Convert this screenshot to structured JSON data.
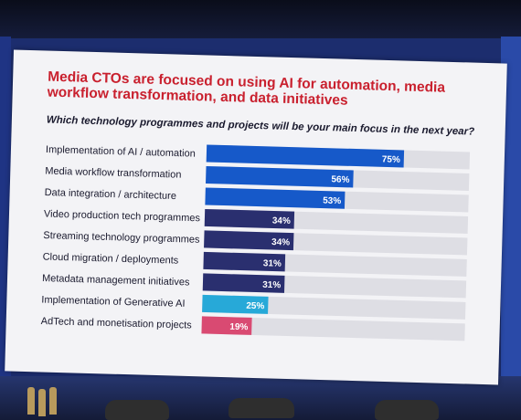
{
  "slide": {
    "title": "Media CTOs are focused on using AI for automation, media workflow transformation, and data initiatives",
    "subtitle": "Which technology programmes and projects will be your main focus in the next year?"
  },
  "chart_data": {
    "type": "bar",
    "orientation": "horizontal",
    "categories": [
      "Implementation of AI / automation",
      "Media workflow transformation",
      "Data integration / architecture",
      "Video production tech programmes",
      "Streaming technology programmes",
      "Cloud migration / deployments",
      "Metadata management initiatives",
      "Implementation of Generative AI",
      "AdTech and monetisation projects"
    ],
    "values": [
      75,
      56,
      53,
      34,
      34,
      31,
      31,
      25,
      19
    ],
    "labels": [
      "75%",
      "56%",
      "53%",
      "34%",
      "34%",
      "31%",
      "31%",
      "25%",
      "19%"
    ],
    "colors": [
      "#1659c9",
      "#1659c9",
      "#1659c9",
      "#2a2f6f",
      "#2a2f6f",
      "#2a2f6f",
      "#2a2f6f",
      "#27a9d8",
      "#d94a72"
    ],
    "track_color": "#dedee4",
    "xlim": [
      0,
      100
    ],
    "title": "",
    "xlabel": "",
    "ylabel": "",
    "grid": false
  }
}
